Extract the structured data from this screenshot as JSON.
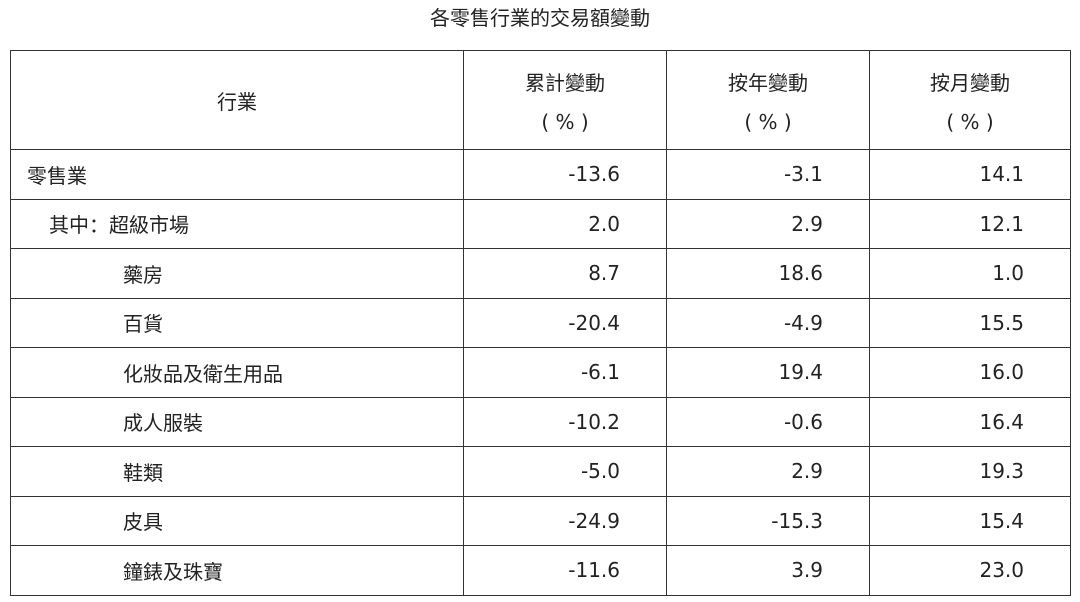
{
  "title": "各零售行業的交易額變動",
  "table": {
    "columns": [
      "行業",
      "累計變動",
      "按年變動",
      "按月變動"
    ],
    "units": [
      "( % )",
      "( % )",
      "( % )"
    ],
    "rows": [
      [
        "零售業",
        "-13.6",
        "-3.1",
        "14.1"
      ],
      [
        "其中：超級市場",
        "2.0",
        "2.9",
        "12.1"
      ],
      [
        "藥房",
        "8.7",
        "18.6",
        "1.0"
      ],
      [
        "百貨",
        "-20.4",
        "-4.9",
        "15.5"
      ],
      [
        "化妝品及衛生用品",
        "-6.1",
        "19.4",
        "16.0"
      ],
      [
        "成人服裝",
        "-10.2",
        "-0.6",
        "16.4"
      ],
      [
        "鞋類",
        "-5.0",
        "2.9",
        "19.3"
      ],
      [
        "皮具",
        "-24.9",
        "-15.3",
        "15.4"
      ],
      [
        "鐘錶及珠寶",
        "-11.6",
        "3.9",
        "23.0"
      ]
    ]
  }
}
